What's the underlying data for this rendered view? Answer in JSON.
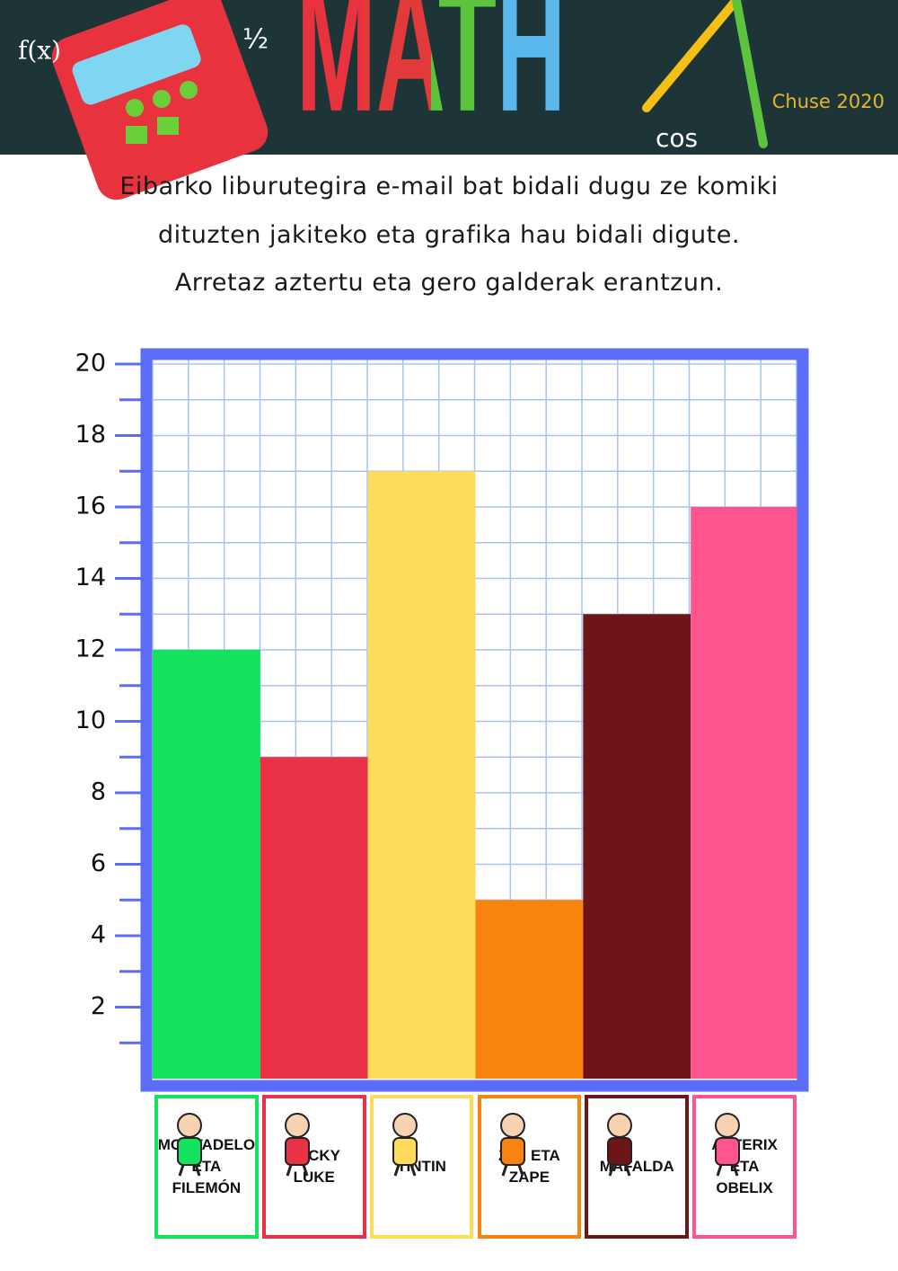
{
  "header": {
    "title": "MATH",
    "credit": "Chuse 2020",
    "doodles": [
      "f(x)",
      "cos"
    ]
  },
  "intro": [
    "Eibarko liburutegira e-mail bat bidali dugu ze komiki",
    "dituzten jakiteko eta grafika hau bidali digute.",
    "Arretaz aztertu eta gero galderak erantzun."
  ],
  "chart_data": {
    "type": "bar",
    "categories": [
      "MORTADELO ETA FILEMÓN",
      "LUCKY LUKE",
      "TINTIN",
      "ZIPI ETA ZAPE",
      "MAFALDA",
      "ASTERIX ETA OBELIX"
    ],
    "values": [
      12,
      9,
      17,
      5,
      13,
      16
    ],
    "colors": [
      "#13e25c",
      "#e83347",
      "#fedb5a",
      "#f9830f",
      "#6e1517",
      "#fe558f"
    ],
    "ylim": [
      0,
      20
    ],
    "yticks": [
      2,
      4,
      6,
      8,
      10,
      12,
      14,
      16,
      18,
      20
    ],
    "minor_yticks": [
      1,
      3,
      5,
      7,
      9,
      11,
      13,
      15,
      17,
      19
    ],
    "grid": true
  }
}
